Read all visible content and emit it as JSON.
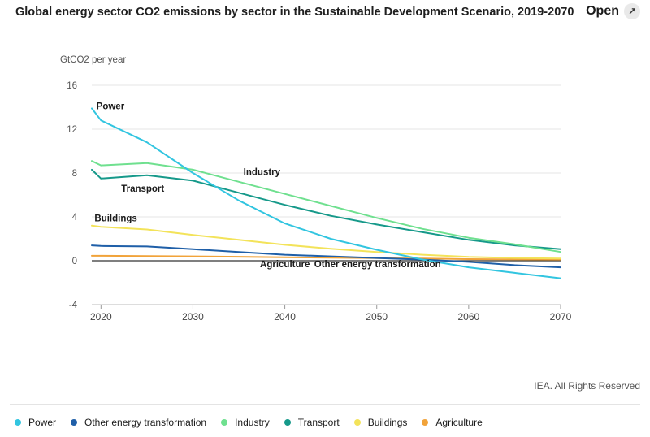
{
  "header": {
    "title": "Global energy sector CO2 emissions by sector in the Sustainable Development Scenario, 2019-2070",
    "open_label": "Open",
    "open_icon": "external-link-icon"
  },
  "attribution": "IEA. All Rights Reserved",
  "chart_data": {
    "type": "line",
    "title": "Global energy sector CO2 emissions by sector in the Sustainable Development Scenario, 2019-2070",
    "ylabel": "GtCO2 per year",
    "xlabel": "",
    "xlim": [
      2019,
      2070
    ],
    "ylim": [
      -4,
      16
    ],
    "x_ticks": [
      2020,
      2030,
      2040,
      2050,
      2060,
      2070
    ],
    "y_ticks": [
      -4,
      0,
      4,
      8,
      12,
      16
    ],
    "grid": true,
    "legend_position": "bottom",
    "x": [
      2019,
      2020,
      2025,
      2030,
      2035,
      2040,
      2045,
      2050,
      2055,
      2060,
      2065,
      2070
    ],
    "series": [
      {
        "name": "Power",
        "color": "#32c5e0",
        "label": "Power",
        "label_x": 2019.5,
        "label_y": 13.8,
        "values": [
          13.9,
          12.8,
          10.8,
          8.0,
          5.5,
          3.4,
          2.0,
          1.0,
          0.1,
          -0.6,
          -1.1,
          -1.6
        ]
      },
      {
        "name": "Other energy transformation",
        "color": "#1f5fa8",
        "label": "Other energy transformation",
        "label_x": 2043.2,
        "label_y": -0.6,
        "values": [
          1.4,
          1.35,
          1.3,
          1.05,
          0.8,
          0.55,
          0.4,
          0.25,
          0.1,
          -0.1,
          -0.4,
          -0.6
        ]
      },
      {
        "name": "Industry",
        "color": "#6fe08f",
        "label": "Industry",
        "label_x": 2035.5,
        "label_y": 7.8,
        "values": [
          9.1,
          8.7,
          8.9,
          8.3,
          7.2,
          6.1,
          5.0,
          3.9,
          2.9,
          2.1,
          1.5,
          0.8
        ]
      },
      {
        "name": "Transport",
        "color": "#16998a",
        "label": "Transport",
        "label_x": 2022.2,
        "label_y": 6.3,
        "values": [
          8.3,
          7.5,
          7.8,
          7.3,
          6.2,
          5.1,
          4.1,
          3.3,
          2.6,
          1.9,
          1.4,
          1.05
        ]
      },
      {
        "name": "Buildings",
        "color": "#f3e35a",
        "label": "Buildings",
        "label_x": 2019.3,
        "label_y": 3.6,
        "values": [
          3.2,
          3.1,
          2.85,
          2.35,
          1.9,
          1.45,
          1.1,
          0.8,
          0.55,
          0.35,
          0.25,
          0.2
        ]
      },
      {
        "name": "Agriculture",
        "color": "#f1a33a",
        "label": "Agriculture",
        "label_x": 2037.3,
        "label_y": -0.6,
        "values": [
          0.45,
          0.45,
          0.43,
          0.4,
          0.36,
          0.32,
          0.28,
          0.24,
          0.2,
          0.15,
          0.12,
          0.1
        ]
      }
    ]
  },
  "legend": [
    {
      "label": "Power",
      "color": "#32c5e0"
    },
    {
      "label": "Other energy transformation",
      "color": "#1f5fa8"
    },
    {
      "label": "Industry",
      "color": "#6fe08f"
    },
    {
      "label": "Transport",
      "color": "#16998a"
    },
    {
      "label": "Buildings",
      "color": "#f3e35a"
    },
    {
      "label": "Agriculture",
      "color": "#f1a33a"
    }
  ]
}
